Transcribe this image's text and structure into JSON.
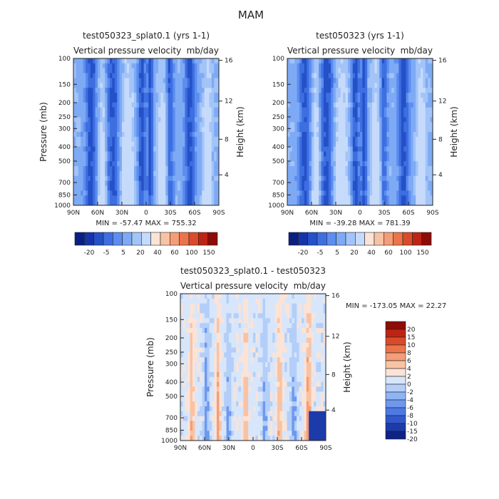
{
  "page_title": "MAM",
  "chart_data": [
    {
      "type": "heatmap",
      "title": "test050323_splat0.1 (yrs 1-1)",
      "subtitle_left": "Vertical pressure velocity",
      "subtitle_right": "mb/day",
      "xlabel": "",
      "ylabel": "Pressure (mb)",
      "ylabel_right": "Height (km)",
      "x_ticks": [
        "90N",
        "60N",
        "30N",
        "0",
        "30S",
        "60S",
        "90S"
      ],
      "y_ticks": [
        "100",
        "150",
        "200",
        "250",
        "300",
        "400",
        "500",
        "700",
        "850",
        "1000"
      ],
      "y_ticks_right": [
        "16",
        "12",
        "8",
        "4"
      ],
      "stats": "MIN = -57.47   MAX = 755.32",
      "colorbar_labels": [
        "-20",
        "-5",
        "5",
        "20",
        "40",
        "60",
        "100",
        "150"
      ],
      "colorbar_colors": [
        "#0a1f82",
        "#1733a8",
        "#2450c8",
        "#3e6fe0",
        "#5c8ef0",
        "#7eaaf5",
        "#a3c4f8",
        "#c6dafb",
        "#fbe3d6",
        "#f8c3a4",
        "#f49d76",
        "#ec744b",
        "#da4b2a",
        "#bd2414",
        "#8e0b06"
      ],
      "ylim": [
        1000,
        100
      ],
      "xlim": [
        "90N",
        "90S"
      ]
    },
    {
      "type": "heatmap",
      "title": "test050323 (yrs 1-1)",
      "subtitle_left": "Vertical pressure velocity",
      "subtitle_right": "mb/day",
      "ylabel_right": "Height (km)",
      "x_ticks": [
        "90N",
        "60N",
        "30N",
        "0",
        "30S",
        "60S",
        "90S"
      ],
      "y_ticks": [
        "100",
        "150",
        "200",
        "250",
        "300",
        "400",
        "500",
        "700",
        "850",
        "1000"
      ],
      "y_ticks_right": [
        "16",
        "12",
        "8",
        "4"
      ],
      "stats": "MIN = -39.28   MAX = 781.39",
      "colorbar_labels": [
        "-20",
        "-5",
        "5",
        "20",
        "40",
        "60",
        "100",
        "150"
      ],
      "ylim": [
        1000,
        100
      ],
      "xlim": [
        "90N",
        "90S"
      ]
    },
    {
      "type": "heatmap",
      "title": "test050323_splat0.1 - test050323",
      "subtitle_left": "Vertical pressure velocity",
      "subtitle_right": "mb/day",
      "ylabel": "Pressure (mb)",
      "ylabel_right": "Height (km)",
      "x_ticks": [
        "90N",
        "60N",
        "30N",
        "0",
        "30S",
        "60S",
        "90S"
      ],
      "y_ticks": [
        "100",
        "150",
        "200",
        "250",
        "300",
        "400",
        "500",
        "700",
        "850",
        "1000"
      ],
      "y_ticks_right": [
        "16",
        "12",
        "8",
        "4"
      ],
      "stats": "MIN = -173.05   MAX =  22.27",
      "colorbar_labels": [
        "20",
        "15",
        "10",
        "8",
        "6",
        "4",
        "2",
        "0",
        "-2",
        "-4",
        "-6",
        "-8",
        "-10",
        "-15",
        "-20"
      ],
      "colorbar_colors": [
        "#8e0b06",
        "#bd2414",
        "#da4b2a",
        "#ec744b",
        "#f49d76",
        "#f8c3a4",
        "#fbe3d6",
        "#d7e6fb",
        "#b3cef8",
        "#8fb4f4",
        "#6d98ee",
        "#4d79e4",
        "#3058cc",
        "#1c3bab",
        "#0d2385"
      ],
      "ylim": [
        1000,
        100
      ],
      "xlim": [
        "90N",
        "90S"
      ]
    }
  ]
}
